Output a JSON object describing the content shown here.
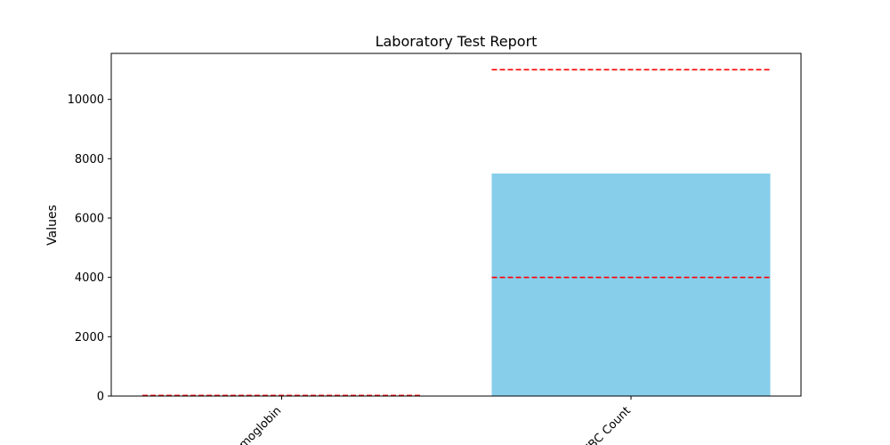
{
  "chart_data": {
    "type": "bar",
    "title": "Laboratory Test Report",
    "xlabel": "",
    "ylabel": "Values",
    "categories": [
      "Hemoglobin",
      "WBC Count"
    ],
    "values": [
      14,
      7500
    ],
    "reference_ranges": [
      {
        "low": 13.5,
        "high": 17.5
      },
      {
        "low": 4000,
        "high": 11000
      }
    ],
    "yticks": [
      0,
      2000,
      4000,
      6000,
      8000,
      10000
    ],
    "ylim": [
      0,
      11550
    ],
    "grid": false,
    "colors": {
      "bar": "#87ceeb",
      "reference_line": "#ff0000"
    }
  }
}
